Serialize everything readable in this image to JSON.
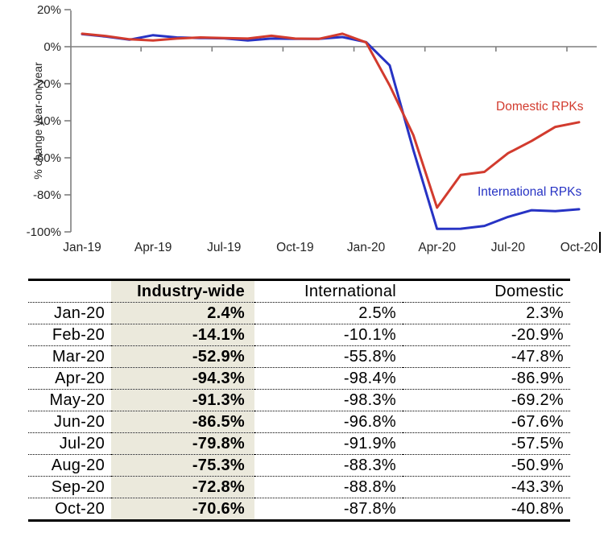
{
  "chart_data": {
    "type": "line",
    "title": "",
    "xlabel": "",
    "ylabel": "% change year-on-year",
    "ylim": [
      -100,
      20
    ],
    "grid": false,
    "legend_position": "inline annotations near lines",
    "x": [
      "Jan-19",
      "Feb-19",
      "Mar-19",
      "Apr-19",
      "May-19",
      "Jun-19",
      "Jul-19",
      "Aug-19",
      "Sep-19",
      "Oct-19",
      "Nov-19",
      "Dec-19",
      "Jan-20",
      "Feb-20",
      "Mar-20",
      "Apr-20",
      "May-20",
      "Jun-20",
      "Jul-20",
      "Aug-20",
      "Sep-20",
      "Oct-20"
    ],
    "x_tick_labels": [
      "Jan-19",
      "Apr-19",
      "Jul-19",
      "Oct-19",
      "Jan-20",
      "Apr-20",
      "Jul-20",
      "Oct-20"
    ],
    "y_ticks": [
      20,
      0,
      -20,
      -40,
      -60,
      -80,
      -100
    ],
    "y_tick_labels": [
      "20%",
      "0%",
      "-20%",
      "-40%",
      "-60%",
      "-80%",
      "-100%"
    ],
    "series": [
      {
        "name": "International RPKs",
        "color": "#2733c4",
        "values": [
          6.8,
          5.5,
          3.8,
          6.2,
          5.0,
          4.7,
          4.5,
          3.4,
          4.4,
          4.2,
          4.2,
          5.2,
          2.5,
          -10.1,
          -55.8,
          -98.4,
          -98.3,
          -96.8,
          -91.9,
          -88.3,
          -88.8,
          -87.8
        ]
      },
      {
        "name": "Domestic RPKs",
        "color": "#d23b2e",
        "values": [
          7.0,
          5.8,
          4.0,
          3.4,
          4.4,
          5.0,
          4.7,
          4.4,
          5.9,
          4.4,
          4.2,
          7.0,
          2.3,
          -20.9,
          -47.8,
          -86.9,
          -69.2,
          -67.6,
          -57.5,
          -50.9,
          -43.3,
          -40.8
        ]
      }
    ],
    "annotations": [
      {
        "text": "Domestic RPKs",
        "color": "#d23b2e"
      },
      {
        "text": "International RPKs",
        "color": "#2733c4"
      }
    ],
    "axis_color": "#7f7f7f",
    "text_color": "#262626"
  },
  "table": {
    "columns": [
      "",
      "Industry-wide",
      "International",
      "Domestic"
    ],
    "highlight_column": "Industry-wide",
    "highlight_color": "#ebe9dc",
    "rows": [
      [
        "Jan-20",
        "2.4%",
        "2.5%",
        "2.3%"
      ],
      [
        "Feb-20",
        "-14.1%",
        "-10.1%",
        "-20.9%"
      ],
      [
        "Mar-20",
        "-52.9%",
        "-55.8%",
        "-47.8%"
      ],
      [
        "Apr-20",
        "-94.3%",
        "-98.4%",
        "-86.9%"
      ],
      [
        "May-20",
        "-91.3%",
        "-98.3%",
        "-69.2%"
      ],
      [
        "Jun-20",
        "-86.5%",
        "-96.8%",
        "-67.6%"
      ],
      [
        "Jul-20",
        "-79.8%",
        "-91.9%",
        "-57.5%"
      ],
      [
        "Aug-20",
        "-75.3%",
        "-88.3%",
        "-50.9%"
      ],
      [
        "Sep-20",
        "-72.8%",
        "-88.8%",
        "-43.3%"
      ],
      [
        "Oct-20",
        "-70.6%",
        "-87.8%",
        "-40.8%"
      ]
    ]
  }
}
